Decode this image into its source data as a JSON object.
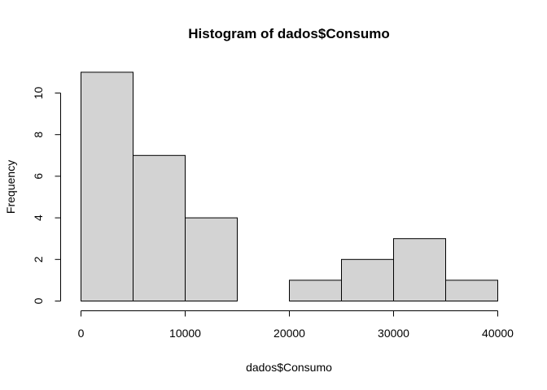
{
  "chart_data": {
    "type": "bar",
    "title": "Histogram of dados$Consumo",
    "xlabel": "dados$Consumo",
    "ylabel": "Frequency",
    "bins": [
      {
        "start": 0,
        "end": 5000,
        "count": 11
      },
      {
        "start": 5000,
        "end": 10000,
        "count": 7
      },
      {
        "start": 10000,
        "end": 15000,
        "count": 4
      },
      {
        "start": 15000,
        "end": 20000,
        "count": 0
      },
      {
        "start": 20000,
        "end": 25000,
        "count": 1
      },
      {
        "start": 25000,
        "end": 30000,
        "count": 2
      },
      {
        "start": 30000,
        "end": 35000,
        "count": 3
      },
      {
        "start": 35000,
        "end": 40000,
        "count": 1
      }
    ],
    "xlim": [
      0,
      40000
    ],
    "ylim": [
      0,
      11
    ],
    "x_ticks": [
      0,
      10000,
      20000,
      30000,
      40000
    ],
    "x_tick_labels": [
      "0",
      "10000",
      "20000",
      "30000",
      "40000"
    ],
    "y_ticks": [
      0,
      2,
      4,
      6,
      8,
      10
    ],
    "y_tick_labels": [
      "0",
      "2",
      "4",
      "6",
      "8",
      "10"
    ],
    "grid": false,
    "bar_fill": "#d3d3d3",
    "bar_stroke": "#000000"
  }
}
